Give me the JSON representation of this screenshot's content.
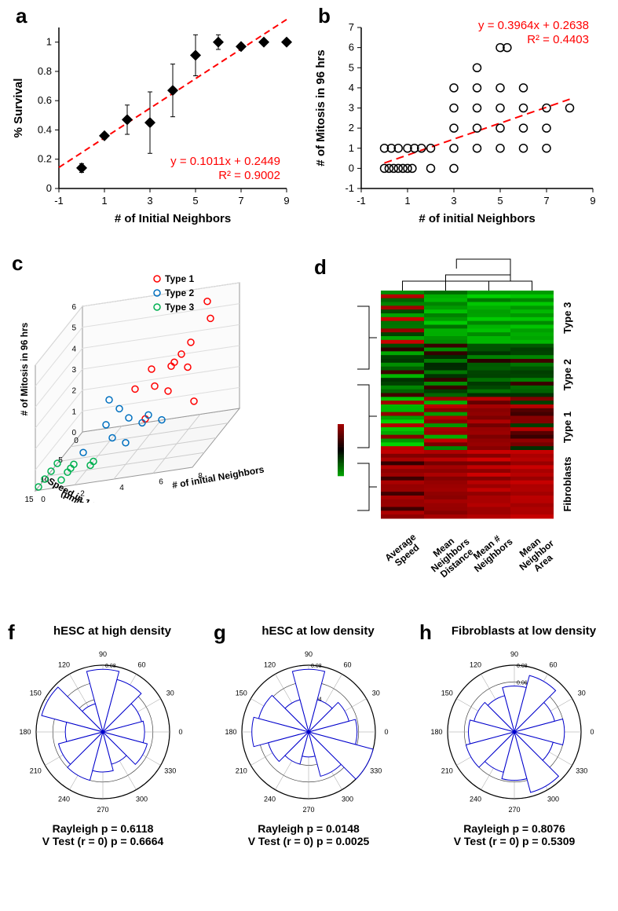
{
  "panel_a": {
    "label": "a",
    "type": "scatter",
    "x_label": "# of Initial Neighbors",
    "y_label": "% Survival",
    "xlim": [
      -1,
      9
    ],
    "ylim": [
      0,
      1.1
    ],
    "xtick_step": 2,
    "ytick_step": 0.2,
    "marker": "diamond",
    "marker_color": "#000000",
    "marker_size": 7,
    "error_bar_color": "#000000",
    "data": [
      {
        "x": 0,
        "y": 0.14,
        "err": 0.03
      },
      {
        "x": 1,
        "y": 0.36,
        "err": 0.02
      },
      {
        "x": 2,
        "y": 0.47,
        "err": 0.1
      },
      {
        "x": 3,
        "y": 0.45,
        "err": 0.21
      },
      {
        "x": 4,
        "y": 0.67,
        "err": 0.18
      },
      {
        "x": 5,
        "y": 0.91,
        "err": 0.14
      },
      {
        "x": 6,
        "y": 1.0,
        "err": 0.05
      },
      {
        "x": 7,
        "y": 0.97,
        "err": 0.02
      },
      {
        "x": 8,
        "y": 1.0,
        "err": 0
      },
      {
        "x": 9,
        "y": 1.0,
        "err": 0
      }
    ],
    "regression": {
      "equation": "y = 0.1011x + 0.2449",
      "r2": "R² = 0.9002",
      "slope": 0.1011,
      "intercept": 0.2449,
      "color": "#ff0000",
      "dash": "8,5",
      "width": 2
    },
    "tick_fontsize": 12,
    "label_fontsize": 15
  },
  "panel_b": {
    "label": "b",
    "type": "scatter",
    "x_label": "# of initial Neighbors",
    "y_label": "# of Mitosis in 96 hrs",
    "xlim": [
      -1,
      9
    ],
    "ylim": [
      -1,
      7
    ],
    "xtick_step": 2,
    "ytick_step": 1,
    "marker": "circle-open",
    "marker_color": "#000000",
    "marker_size": 5,
    "data": [
      {
        "x": 0,
        "y": 0
      },
      {
        "x": 0.2,
        "y": 0
      },
      {
        "x": 0.4,
        "y": 0
      },
      {
        "x": 0.6,
        "y": 0
      },
      {
        "x": 0.8,
        "y": 0
      },
      {
        "x": 1,
        "y": 0
      },
      {
        "x": 1.2,
        "y": 0
      },
      {
        "x": 2,
        "y": 0
      },
      {
        "x": 3,
        "y": 0
      },
      {
        "x": 0,
        "y": 1
      },
      {
        "x": 0.3,
        "y": 1
      },
      {
        "x": 0.6,
        "y": 1
      },
      {
        "x": 1,
        "y": 1
      },
      {
        "x": 1.3,
        "y": 1
      },
      {
        "x": 1.6,
        "y": 1
      },
      {
        "x": 2,
        "y": 1
      },
      {
        "x": 3,
        "y": 1
      },
      {
        "x": 4,
        "y": 1
      },
      {
        "x": 5,
        "y": 1
      },
      {
        "x": 6,
        "y": 1
      },
      {
        "x": 7,
        "y": 1
      },
      {
        "x": 3,
        "y": 2
      },
      {
        "x": 4,
        "y": 2
      },
      {
        "x": 5,
        "y": 2
      },
      {
        "x": 6,
        "y": 2
      },
      {
        "x": 7,
        "y": 2
      },
      {
        "x": 3,
        "y": 3
      },
      {
        "x": 4,
        "y": 3
      },
      {
        "x": 5,
        "y": 3
      },
      {
        "x": 6,
        "y": 3
      },
      {
        "x": 7,
        "y": 3
      },
      {
        "x": 8,
        "y": 3
      },
      {
        "x": 3,
        "y": 4
      },
      {
        "x": 4,
        "y": 4
      },
      {
        "x": 5,
        "y": 4
      },
      {
        "x": 6,
        "y": 4
      },
      {
        "x": 4,
        "y": 5
      },
      {
        "x": 5,
        "y": 6
      },
      {
        "x": 5.3,
        "y": 6
      }
    ],
    "regression": {
      "equation": "y = 0.3964x + 0.2638",
      "r2": "R² = 0.4403",
      "slope": 0.3964,
      "intercept": 0.2638,
      "color": "#ff0000",
      "dash": "10,6",
      "width": 2
    },
    "tick_fontsize": 12,
    "label_fontsize": 15
  },
  "panel_c": {
    "label": "c",
    "type": "scatter3d",
    "x_label": "# of initial Neighbors",
    "y_label": "Speed in 1.7hrs\n(μm/min)",
    "z_label": "# of Mitosis in 96 hrs",
    "legend": [
      {
        "label": "Type 1",
        "color": "#ff0000"
      },
      {
        "label": "Type 2",
        "color": "#0070c0"
      },
      {
        "label": "Type 3",
        "color": "#00b050"
      }
    ],
    "label_fontsize": 12
  },
  "panel_d": {
    "label": "d",
    "type": "heatmap",
    "x_labels": [
      "Average\nSpeed",
      "Mean\nNeighbors\nDistance",
      "Mean #\nNeighbors",
      "Mean\nNeighbor\nArea"
    ],
    "y_groups": [
      "Type 3",
      "Type 2",
      "Type 1",
      "Fibroblasts"
    ],
    "color_low": "#00a000",
    "color_mid": "#000000",
    "color_high": "#d00000",
    "label_fontsize": 12
  },
  "panel_f": {
    "label": "f",
    "type": "rose",
    "title": "hESC at high density",
    "stats_line1": "Rayleigh p = 0.6118",
    "stats_line2": "V Test (r = 0) p = 0.6664",
    "angles_deg": [
      0,
      30,
      60,
      90,
      120,
      150,
      180,
      210,
      240,
      270,
      300,
      330
    ],
    "radial_ticks": [
      0.02,
      0.04,
      0.06,
      0.08
    ],
    "values": [
      0.05,
      0.048,
      0.065,
      0.075,
      0.035,
      0.076,
      0.045,
      0.055,
      0.06,
      0.048,
      0.04,
      0.055
    ],
    "bar_color": "#ffffff",
    "bar_border": "#0000cc",
    "circle_color": "#444444"
  },
  "panel_g": {
    "label": "g",
    "type": "rose",
    "title": "hESC at low density",
    "stats_line1": "Rayleigh p = 0.0148",
    "stats_line2": "V Test (r = 0) p = 0.0025",
    "angles_deg": [
      0,
      30,
      60,
      90,
      120,
      150,
      180,
      210,
      240,
      270,
      300,
      330
    ],
    "radial_ticks": [
      0.02,
      0.04,
      0.06,
      0.08
    ],
    "values": [
      0.058,
      0.05,
      0.04,
      0.075,
      0.04,
      0.062,
      0.068,
      0.05,
      0.04,
      0.03,
      0.055,
      0.08
    ],
    "bar_color": "#ffffff",
    "bar_border": "#0000cc",
    "circle_color": "#444444"
  },
  "panel_h": {
    "label": "h",
    "type": "rose",
    "title": "Fibroblasts at low density",
    "stats_line1": "Rayleigh p = 0.8076",
    "stats_line2": "V Test (r = 0) p = 0.5309",
    "angles_deg": [
      0,
      30,
      60,
      90,
      120,
      150,
      180,
      210,
      240,
      270,
      300,
      330
    ],
    "radial_ticks": [
      0.02,
      0.04,
      0.06,
      0.08
    ],
    "values": [
      0.06,
      0.05,
      0.07,
      0.055,
      0.045,
      0.05,
      0.055,
      0.06,
      0.05,
      0.058,
      0.075,
      0.048
    ],
    "bar_color": "#ffffff",
    "bar_border": "#0000cc",
    "circle_color": "#444444"
  }
}
